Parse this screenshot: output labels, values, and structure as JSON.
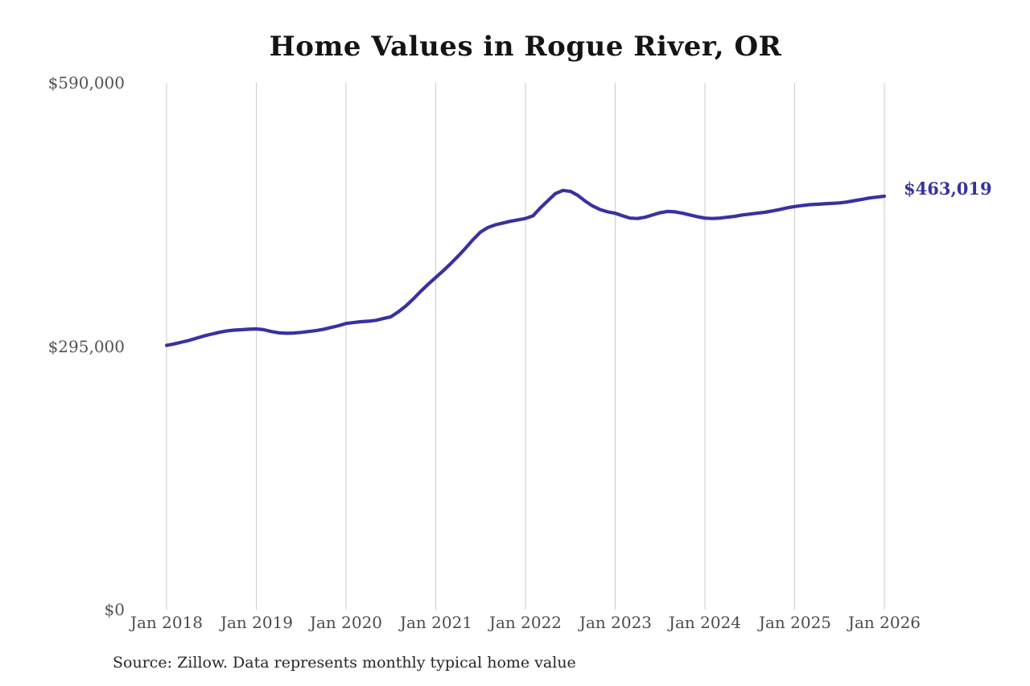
{
  "page": {
    "background": "#ffffff"
  },
  "chart_data": {
    "type": "line",
    "title": "Home Values in Rogue River, OR",
    "source_note": "Source: Zillow. Data represents monthly typical home value",
    "end_label": "$463,019",
    "end_value": 463019,
    "series_name": "Monthly typical home value",
    "series_color": "#38329f",
    "gridline_color": "#cbcbcb",
    "grid": "vertical-only",
    "legend": "none",
    "ylim": [
      0,
      590000
    ],
    "x_range": {
      "start": "Jan 2018",
      "end": "Jan 2026",
      "interval": "monthly"
    },
    "y_ticks": [
      {
        "label": "$590,000",
        "value": 590000
      },
      {
        "label": "$295,000",
        "value": 295000
      },
      {
        "label": "$0",
        "value": 0
      }
    ],
    "x_ticks": [
      {
        "label": "Jan 2018",
        "month_index": 0
      },
      {
        "label": "Jan 2019",
        "month_index": 12
      },
      {
        "label": "Jan 2020",
        "month_index": 24
      },
      {
        "label": "Jan 2021",
        "month_index": 36
      },
      {
        "label": "Jan 2022",
        "month_index": 48
      },
      {
        "label": "Jan 2023",
        "month_index": 60
      },
      {
        "label": "Jan 2024",
        "month_index": 72
      },
      {
        "label": "Jan 2025",
        "month_index": 84
      },
      {
        "label": "Jan 2026",
        "month_index": 96
      }
    ],
    "values": [
      296000,
      297500,
      299500,
      301500,
      304000,
      306500,
      308500,
      310500,
      312000,
      313000,
      313500,
      314000,
      314400,
      313500,
      311500,
      310000,
      309500,
      309800,
      310500,
      311500,
      312500,
      314000,
      316000,
      318000,
      320500,
      321500,
      322500,
      323000,
      324000,
      326000,
      328000,
      333500,
      340000,
      348000,
      356500,
      364500,
      372000,
      379500,
      387500,
      396000,
      405000,
      414500,
      423000,
      428000,
      431000,
      433000,
      435000,
      436500,
      438000,
      441000,
      450000,
      458000,
      466000,
      469500,
      468500,
      464000,
      457500,
      452000,
      448000,
      445500,
      444000,
      441000,
      438500,
      438000,
      439500,
      442000,
      444500,
      446000,
      445500,
      444000,
      442000,
      440000,
      438500,
      438000,
      438500,
      439500,
      440500,
      442000,
      443000,
      444000,
      445000,
      446500,
      448000,
      450000,
      451500,
      452500,
      453500,
      454000,
      454500,
      455000,
      455500,
      456500,
      458000,
      459500,
      461000,
      462000,
      463019
    ]
  }
}
